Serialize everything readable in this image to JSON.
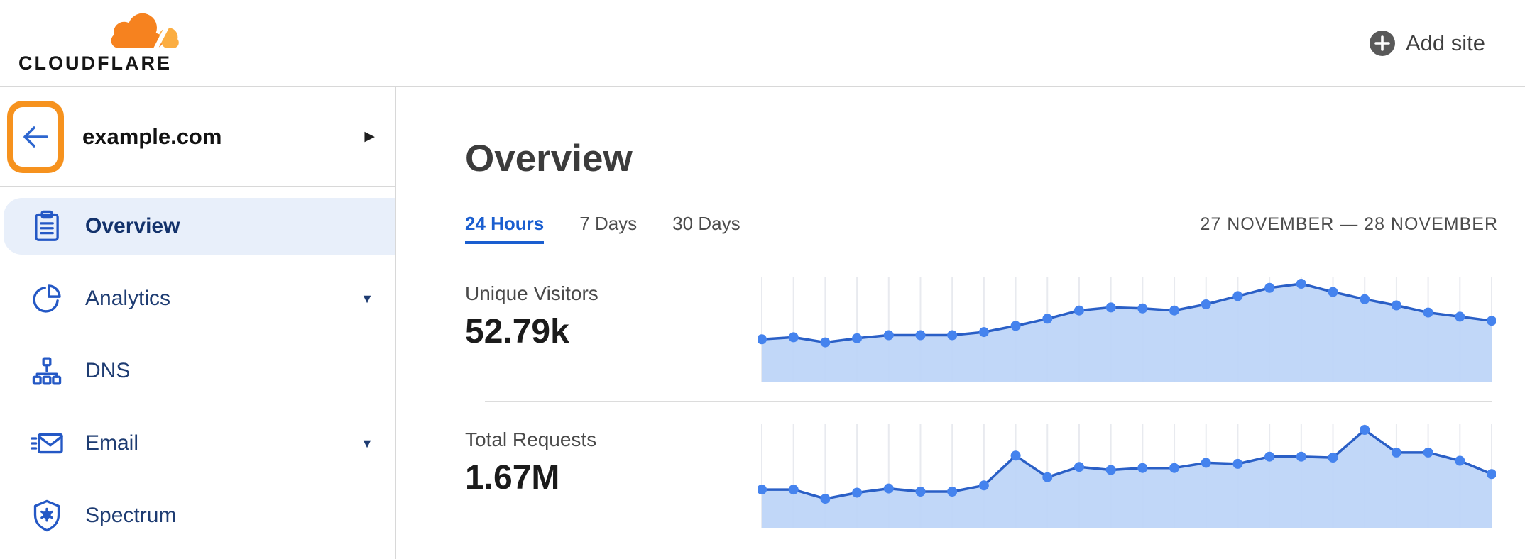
{
  "header": {
    "logo_text": "CLOUDFLARE",
    "add_site_label": "Add site",
    "add_site_icon": "plus-circle-icon"
  },
  "sidebar": {
    "back_icon": "arrow-left-icon",
    "back_highlight_color": "#f6921e",
    "site_name": "example.com",
    "site_expand_icon": "caret-right-icon",
    "items": [
      {
        "label": "Overview",
        "icon": "clipboard-icon",
        "selected": true,
        "expandable": false
      },
      {
        "label": "Analytics",
        "icon": "pie-chart-icon",
        "selected": false,
        "expandable": true
      },
      {
        "label": "DNS",
        "icon": "network-tree-icon",
        "selected": false,
        "expandable": false
      },
      {
        "label": "Email",
        "icon": "envelope-icon",
        "selected": false,
        "expandable": true
      },
      {
        "label": "Spectrum",
        "icon": "shield-icon",
        "selected": false,
        "expandable": false
      }
    ]
  },
  "main": {
    "title": "Overview",
    "tabs": [
      {
        "label": "24 Hours",
        "active": true
      },
      {
        "label": "7 Days",
        "active": false
      },
      {
        "label": "30 Days",
        "active": false
      }
    ],
    "date_range": "27 NOVEMBER — 28 NOVEMBER"
  },
  "colors": {
    "accent_blue": "#1a5ed0",
    "nav_text": "#1e3c72",
    "selected_item_bg": "#e8effa",
    "brand_orange": "#f6821f",
    "brand_orange_light": "#fbad41",
    "annotation_orange": "#f6921e",
    "chart_line": "#2a5fc6",
    "chart_dot": "#4583ee",
    "chart_fill": "#bcd4f7",
    "gridline": "#e8eaef",
    "divider": "#dcdcdc"
  },
  "chart_data": [
    {
      "type": "area",
      "title": "Unique Visitors",
      "summary_value": "52.79k",
      "x_unit": "hourly points over selected 24 Hours range (no tick labels shown)",
      "y_axis": "unlabeled; values are relative heights, 100 = series peak",
      "values": [
        46,
        48,
        43,
        47,
        50,
        50,
        50,
        53,
        59,
        66,
        74,
        77,
        76,
        74,
        80,
        88,
        96,
        100,
        92,
        85,
        79,
        72,
        68,
        64
      ],
      "grid": "vertical gridlines only",
      "legend": "none"
    },
    {
      "type": "area",
      "title": "Total Requests",
      "summary_value": "1.67M",
      "x_unit": "hourly points over selected 24 Hours range (no tick labels shown)",
      "y_axis": "unlabeled; values are relative heights, 100 = series peak",
      "values": [
        42,
        42,
        33,
        39,
        43,
        40,
        40,
        46,
        75,
        54,
        64,
        61,
        63,
        63,
        68,
        67,
        74,
        74,
        73,
        100,
        78,
        78,
        70,
        57
      ],
      "grid": "vertical gridlines only",
      "legend": "none"
    }
  ]
}
